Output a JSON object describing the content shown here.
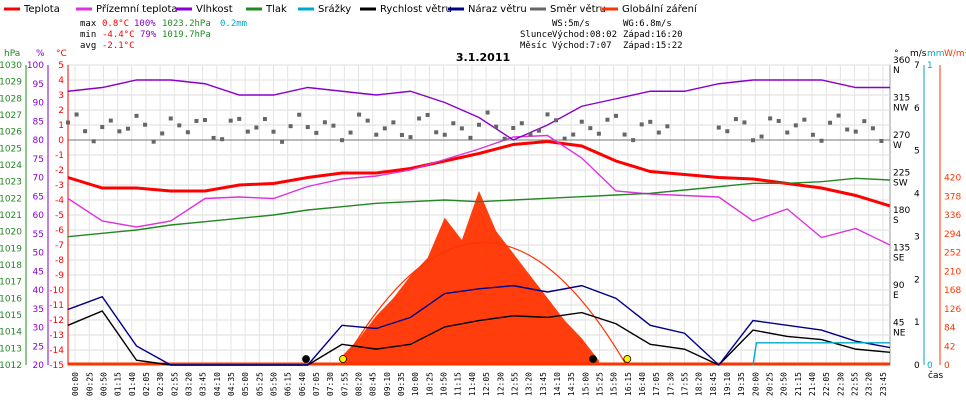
{
  "legend": [
    {
      "label": "Teplota",
      "color": "#ff0000"
    },
    {
      "label": "Přízemní teplota",
      "color": "#dd33dd"
    },
    {
      "label": "Vlhkost",
      "color": "#8800cc"
    },
    {
      "label": "Tlak",
      "color": "#228822"
    },
    {
      "label": "Srážky",
      "color": "#00aacc"
    },
    {
      "label": "Rychlost větru",
      "color": "#000000"
    },
    {
      "label": "Náraz větru",
      "color": "#000088"
    },
    {
      "label": "Směr větru",
      "color": "#666666"
    },
    {
      "label": "Globální záření",
      "color": "#ff3300"
    }
  ],
  "stats": {
    "max_label": "max",
    "max_temp": "0.8°C",
    "max_hum": "100%",
    "max_press": "1023.2hPa",
    "max_rain": "0.2mm",
    "min_label": "min",
    "min_temp": "-4.4°C",
    "min_hum": "79%",
    "min_press": "1019.7hPa",
    "avg_label": "avg",
    "avg_temp": "-2.1°C",
    "ws": "WS:5m/s",
    "wg": "WG:6.8m/s",
    "sun_label": "Slunce",
    "sun_rise": "Východ:08:02",
    "sun_set": "Západ:16:20",
    "moon_label": "Měsíc",
    "moon_rise": "Východ:7:07",
    "moon_set": "Západ:15:22"
  },
  "chart_data": {
    "type": "line",
    "title": "3.1.2011",
    "xlabel": "čas",
    "axis_units": {
      "pressure": "hPa",
      "humidity": "%",
      "temperature": "°C",
      "direction": "°",
      "wind": "m/s",
      "rain": "mm",
      "radiation": "W/m²"
    },
    "left_axes": {
      "pressure": {
        "range": [
          1012,
          1030
        ],
        "ticks": [
          1012,
          1013,
          1014,
          1015,
          1016,
          1017,
          1018,
          1019,
          1020,
          1021,
          1022,
          1023,
          1024,
          1025,
          1026,
          1027,
          1028,
          1029,
          1030
        ],
        "color": "#228822"
      },
      "humidity": {
        "range": [
          20,
          100
        ],
        "ticks": [
          20,
          25,
          30,
          35,
          40,
          45,
          50,
          55,
          60,
          65,
          70,
          75,
          80,
          85,
          90,
          95,
          100
        ],
        "color": "#8800cc"
      },
      "temperature": {
        "range": [
          -15,
          5
        ],
        "ticks": [
          -15,
          -14,
          -13,
          -12,
          -11,
          -10,
          -9,
          -8,
          -7,
          -6,
          -5,
          -4,
          -3,
          -2,
          -1,
          0,
          1,
          2,
          3,
          4,
          5
        ],
        "color": "#ff0000"
      }
    },
    "right_axes": {
      "direction": {
        "ticks": [
          {
            "deg": "45",
            "dir": "NE"
          },
          {
            "deg": "90",
            "dir": "E"
          },
          {
            "deg": "135",
            "dir": "SE"
          },
          {
            "deg": "180",
            "dir": "S"
          },
          {
            "deg": "225",
            "dir": "SW"
          },
          {
            "deg": "270",
            "dir": "W"
          },
          {
            "deg": "315",
            "dir": "NW"
          },
          {
            "deg": "360",
            "dir": "N"
          }
        ]
      },
      "wind": {
        "range": [
          0,
          7
        ],
        "ticks": [
          0,
          1,
          2,
          3,
          4,
          5,
          6,
          7
        ]
      },
      "rain": {
        "range": [
          0,
          1
        ],
        "ticks": [
          0,
          1
        ],
        "color": "#00aacc"
      },
      "radiation": {
        "range": [
          0,
          420
        ],
        "ticks": [
          0,
          42,
          84,
          126,
          168,
          210,
          252,
          294,
          336,
          378,
          420
        ],
        "color": "#ff3300"
      }
    },
    "x_ticks": [
      "00:00",
      "00:25",
      "00:50",
      "01:15",
      "01:40",
      "02:05",
      "02:30",
      "02:55",
      "03:20",
      "03:45",
      "04:10",
      "04:35",
      "05:00",
      "05:25",
      "05:50",
      "06:15",
      "06:40",
      "07:05",
      "07:30",
      "07:55",
      "08:20",
      "08:45",
      "09:10",
      "09:35",
      "10:00",
      "10:25",
      "10:50",
      "11:15",
      "11:40",
      "12:05",
      "12:30",
      "12:55",
      "13:20",
      "13:45",
      "14:10",
      "14:35",
      "15:00",
      "15:25",
      "15:50",
      "16:15",
      "16:40",
      "17:05",
      "17:30",
      "17:55",
      "18:20",
      "18:45",
      "19:10",
      "19:35",
      "20:00",
      "20:25",
      "20:50",
      "21:15",
      "21:40",
      "22:05",
      "22:30",
      "22:55",
      "23:20",
      "23:45"
    ],
    "series": [
      {
        "name": "Teplota",
        "axis": "temperature",
        "color": "#ff0000",
        "x": [
          0,
          1,
          2,
          3,
          4,
          5,
          6,
          7,
          8,
          9,
          10,
          11,
          12,
          13,
          14,
          15,
          16,
          17,
          18,
          19,
          20,
          21,
          22,
          23,
          24
        ],
        "values": [
          -2.5,
          -3.2,
          -3.2,
          -3.4,
          -3.4,
          -3.0,
          -2.9,
          -2.5,
          -2.2,
          -2.2,
          -1.9,
          -1.4,
          -0.9,
          -0.3,
          -0.1,
          -0.4,
          -1.4,
          -2.1,
          -2.3,
          -2.5,
          -2.6,
          -2.9,
          -3.2,
          -3.7,
          -4.4
        ]
      },
      {
        "name": "Přízemní teplota",
        "axis": "temperature",
        "color": "#dd33dd",
        "x": [
          0,
          1,
          2,
          3,
          4,
          5,
          6,
          7,
          8,
          9,
          10,
          11,
          12,
          13,
          14,
          15,
          16,
          17,
          18,
          19,
          20,
          21,
          22,
          23,
          24
        ],
        "values": [
          -3.9,
          -5.4,
          -5.8,
          -5.4,
          -3.9,
          -3.8,
          -3.9,
          -3.1,
          -2.6,
          -2.4,
          -2.0,
          -1.3,
          -0.6,
          0.2,
          0.3,
          -1.2,
          -3.4,
          -3.6,
          -3.7,
          -3.8,
          -5.4,
          -4.6,
          -6.5,
          -5.9,
          -7.0
        ]
      },
      {
        "name": "Vlhkost",
        "axis": "humidity",
        "color": "#8800cc",
        "x": [
          0,
          1,
          2,
          3,
          4,
          5,
          6,
          7,
          8,
          9,
          10,
          11,
          12,
          13,
          14,
          15,
          16,
          17,
          18,
          19,
          20,
          21,
          22,
          23,
          24
        ],
        "values": [
          93,
          94,
          96,
          96,
          95,
          92,
          92,
          94,
          93,
          92,
          93,
          90,
          86,
          80,
          84,
          89,
          91,
          93,
          93,
          95,
          96,
          96,
          96,
          94,
          94
        ]
      },
      {
        "name": "Tlak",
        "axis": "pressure",
        "color": "#228822",
        "x": [
          0,
          1,
          2,
          3,
          4,
          5,
          6,
          7,
          8,
          9,
          10,
          11,
          12,
          13,
          14,
          15,
          16,
          17,
          18,
          19,
          20,
          21,
          22,
          23,
          24
        ],
        "values": [
          1019.7,
          1019.9,
          1020.1,
          1020.4,
          1020.6,
          1020.8,
          1021.0,
          1021.3,
          1021.5,
          1021.7,
          1021.8,
          1021.9,
          1021.8,
          1021.9,
          1022.0,
          1022.1,
          1022.2,
          1022.3,
          1022.5,
          1022.7,
          1022.9,
          1022.9,
          1023.0,
          1023.2,
          1023.1
        ]
      },
      {
        "name": "Rychlost větru",
        "axis": "wind",
        "color": "#000000",
        "x": [
          0,
          1,
          2,
          3,
          4,
          5,
          6,
          7,
          8,
          9,
          10,
          11,
          12,
          13,
          14,
          15,
          16,
          17,
          18,
          19,
          20,
          21,
          22,
          23,
          24
        ],
        "values": [
          2.5,
          3.4,
          0.3,
          0,
          0,
          0,
          0,
          0,
          1.3,
          1.0,
          1.3,
          2.4,
          2.8,
          3.1,
          3.0,
          3.3,
          2.6,
          1.3,
          1.0,
          0,
          2.2,
          1.8,
          1.6,
          1.0,
          0.8
        ]
      },
      {
        "name": "Náraz větru",
        "axis": "wind",
        "color": "#000088",
        "x": [
          0,
          1,
          2,
          3,
          4,
          5,
          6,
          7,
          8,
          9,
          10,
          11,
          12,
          13,
          14,
          15,
          16,
          17,
          18,
          19,
          20,
          21,
          22,
          23,
          24
        ],
        "values": [
          3.5,
          4.3,
          1.2,
          0,
          0,
          0,
          0,
          0,
          2.5,
          2.3,
          3.0,
          4.5,
          4.8,
          5.0,
          4.6,
          5.0,
          4.2,
          2.5,
          2.0,
          0,
          2.8,
          2.5,
          2.2,
          1.5,
          1.1
        ]
      },
      {
        "name": "Globální záření",
        "axis": "radiation",
        "color": "#ff3300",
        "x": [
          8.0,
          8.5,
          9.0,
          9.5,
          10.0,
          10.5,
          11.0,
          11.5,
          12.0,
          12.5,
          13.0,
          13.5,
          14.0,
          14.5,
          15.0,
          15.5
        ],
        "values": [
          20,
          60,
          110,
          150,
          200,
          240,
          330,
          280,
          390,
          300,
          250,
          200,
          150,
          100,
          60,
          10
        ]
      },
      {
        "name": "Srážky",
        "axis": "rain",
        "color": "#00aacc",
        "x": [
          20.0,
          20.1,
          24
        ],
        "values": [
          0,
          0.2,
          0.2
        ]
      }
    ],
    "wind_direction_points": "scattered between roughly 270° (W) and 315° (NW), mostly around 290–300°"
  }
}
